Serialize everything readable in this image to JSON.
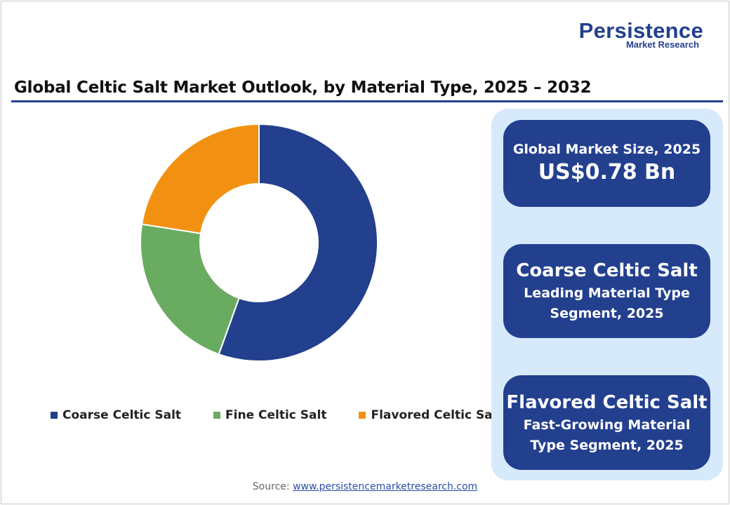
{
  "logo": {
    "main": "Persistence",
    "sub": "Market Research"
  },
  "title": "Global Celtic Salt Market Outlook, by Material Type, 2025 – 2032",
  "chart_data": {
    "type": "pie",
    "donut": true,
    "title": "Global Celtic Salt Market Outlook, by Material Type, 2025 – 2032",
    "categories": [
      "Coarse Celtic Salt",
      "Fine Celtic Salt",
      "Flavored Celtic Salt"
    ],
    "values": [
      55.5,
      22,
      22.5
    ],
    "unit": "%",
    "colors": [
      "#23408e",
      "#6aab62",
      "#f29111"
    ],
    "legend": "bottom",
    "start_angle_deg": 0,
    "direction": "clockwise"
  },
  "cards": [
    {
      "label": "Global Market Size, 2025",
      "value": "US$0.78 Bn"
    },
    {
      "headline": "Coarse Celtic Salt",
      "line1": "Leading Material Type",
      "line2": "Segment, 2025"
    },
    {
      "headline": "Flavored Celtic Salt",
      "line1": "Fast-Growing Material",
      "line2": "Type Segment, 2025"
    }
  ],
  "source": {
    "label": "Source:",
    "link": "www.persistencemarketresearch.com"
  }
}
